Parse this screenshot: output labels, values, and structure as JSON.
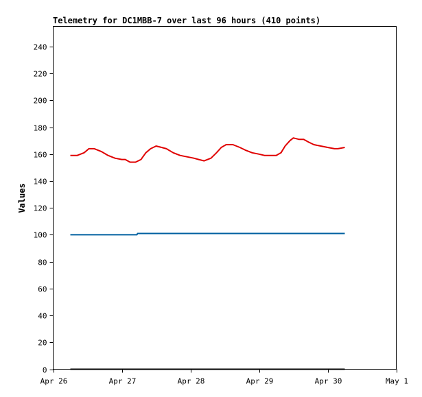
{
  "chart_data": {
    "type": "line",
    "title": "Telemetry for DC1MBB-7 over last 96 hours (410 points)",
    "xlabel": "",
    "ylabel": "Values",
    "ylim": [
      0,
      255
    ],
    "xlim": [
      0,
      5
    ],
    "y_ticks": [
      0,
      20,
      40,
      60,
      80,
      100,
      120,
      140,
      160,
      180,
      200,
      220,
      240
    ],
    "x_ticks": [
      {
        "label": "Apr 26",
        "value": 0
      },
      {
        "label": "Apr 27",
        "value": 1
      },
      {
        "label": "Apr 28",
        "value": 2
      },
      {
        "label": "Apr 29",
        "value": 3
      },
      {
        "label": "Apr 30",
        "value": 4
      },
      {
        "label": "May 1",
        "value": 5
      }
    ],
    "grid": false,
    "legend": "none",
    "series": [
      {
        "color": "#e00000",
        "x": [
          0.25,
          0.35,
          0.45,
          0.52,
          0.6,
          0.7,
          0.8,
          0.9,
          1.0,
          1.05,
          1.12,
          1.2,
          1.28,
          1.35,
          1.42,
          1.5,
          1.58,
          1.65,
          1.75,
          1.85,
          1.95,
          2.05,
          2.12,
          2.2,
          2.3,
          2.38,
          2.45,
          2.52,
          2.62,
          2.72,
          2.8,
          2.9,
          3.0,
          3.08,
          3.15,
          3.25,
          3.32,
          3.38,
          3.45,
          3.5,
          3.58,
          3.65,
          3.72,
          3.8,
          3.9,
          4.0,
          4.1,
          4.15,
          4.25
        ],
        "values": [
          159,
          159,
          161,
          164,
          164,
          162,
          159,
          157,
          156,
          156,
          154,
          154,
          156,
          161,
          164,
          166,
          165,
          164,
          161,
          159,
          158,
          157,
          156,
          155,
          157,
          161,
          165,
          167,
          167,
          165,
          163,
          161,
          160,
          159,
          159,
          159,
          161,
          166,
          170,
          172,
          171,
          171,
          169,
          167,
          166,
          165,
          164,
          164,
          165
        ]
      },
      {
        "color": "#0060a0",
        "x": [
          0.25,
          1.22,
          1.23,
          4.25
        ],
        "values": [
          100,
          100,
          101,
          101
        ]
      },
      {
        "color": "#000000",
        "x": [
          0.25,
          4.25
        ],
        "values": [
          0,
          0
        ]
      }
    ]
  }
}
